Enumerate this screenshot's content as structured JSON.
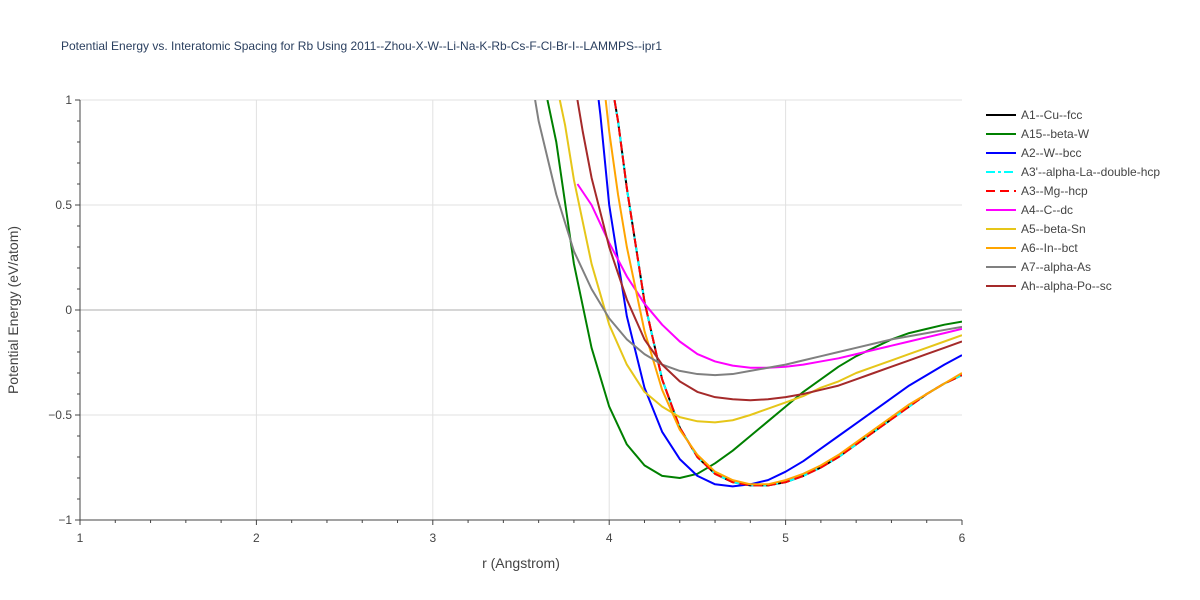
{
  "chart_data": {
    "type": "line",
    "title": "Potential Energy vs. Interatomic Spacing for Rb Using 2011--Zhou-X-W--Li-Na-K-Rb-Cs-F-Cl-Br-I--LAMMPS--ipr1",
    "xlabel": "r (Angstrom)",
    "ylabel": "Potential Energy (eV/atom)",
    "xlim": [
      1,
      6
    ],
    "ylim": [
      -1,
      1
    ],
    "xticks": [
      "1",
      "2",
      "3",
      "4",
      "5",
      "6"
    ],
    "yticks": [
      "−1",
      "−0.5",
      "0",
      "0.5",
      "1"
    ],
    "grid": true,
    "legend_position": "right",
    "series": [
      {
        "name": "A1--Cu--fcc",
        "color": "#000000",
        "dash": "solid",
        "x": [
          4.03,
          4.05,
          4.1,
          4.2,
          4.3,
          4.4,
          4.5,
          4.6,
          4.7,
          4.8,
          4.9,
          5.0,
          5.1,
          5.2,
          5.3,
          5.4,
          5.5,
          5.6,
          5.7,
          5.8,
          5.9,
          6.0
        ],
        "y": [
          1.0,
          0.9,
          0.58,
          0.04,
          -0.33,
          -0.56,
          -0.7,
          -0.78,
          -0.82,
          -0.835,
          -0.835,
          -0.82,
          -0.79,
          -0.75,
          -0.7,
          -0.64,
          -0.58,
          -0.52,
          -0.46,
          -0.4,
          -0.35,
          -0.31
        ]
      },
      {
        "name": "A15--beta-W",
        "color": "#008000",
        "dash": "solid",
        "x": [
          3.65,
          3.7,
          3.8,
          3.9,
          4.0,
          4.1,
          4.2,
          4.3,
          4.4,
          4.5,
          4.6,
          4.7,
          4.8,
          4.9,
          5.0,
          5.1,
          5.2,
          5.3,
          5.4,
          5.5,
          5.6,
          5.7,
          5.8,
          5.9,
          6.0
        ],
        "y": [
          1.0,
          0.8,
          0.22,
          -0.18,
          -0.46,
          -0.64,
          -0.74,
          -0.79,
          -0.8,
          -0.78,
          -0.73,
          -0.67,
          -0.6,
          -0.53,
          -0.46,
          -0.39,
          -0.33,
          -0.27,
          -0.22,
          -0.18,
          -0.14,
          -0.11,
          -0.09,
          -0.07,
          -0.055
        ]
      },
      {
        "name": "A2--W--bcc",
        "color": "#0000ff",
        "dash": "solid",
        "x": [
          3.94,
          3.95,
          4.0,
          4.1,
          4.2,
          4.3,
          4.4,
          4.5,
          4.6,
          4.7,
          4.8,
          4.9,
          5.0,
          5.1,
          5.2,
          5.3,
          5.4,
          5.5,
          5.6,
          5.7,
          5.8,
          5.9,
          6.0
        ],
        "y": [
          1.0,
          0.93,
          0.5,
          -0.03,
          -0.37,
          -0.58,
          -0.71,
          -0.79,
          -0.83,
          -0.84,
          -0.83,
          -0.81,
          -0.77,
          -0.72,
          -0.66,
          -0.6,
          -0.54,
          -0.48,
          -0.42,
          -0.36,
          -0.31,
          -0.26,
          -0.215
        ]
      },
      {
        "name": "A3'--alpha-La--double-hcp",
        "color": "#00ffff",
        "dash": "dashdot",
        "x": [
          4.03,
          4.05,
          4.1,
          4.2,
          4.3,
          4.4,
          4.5,
          4.6,
          4.7,
          4.8,
          4.9,
          5.0,
          5.1,
          5.2,
          5.3,
          5.4,
          5.5,
          5.6,
          5.7,
          5.8,
          5.9,
          6.0
        ],
        "y": [
          1.0,
          0.9,
          0.58,
          0.04,
          -0.33,
          -0.56,
          -0.7,
          -0.78,
          -0.82,
          -0.835,
          -0.835,
          -0.82,
          -0.79,
          -0.75,
          -0.7,
          -0.64,
          -0.58,
          -0.52,
          -0.46,
          -0.4,
          -0.35,
          -0.31
        ]
      },
      {
        "name": "A3--Mg--hcp",
        "color": "#ff0000",
        "dash": "dash",
        "x": [
          4.03,
          4.05,
          4.1,
          4.2,
          4.3,
          4.4,
          4.5,
          4.6,
          4.7,
          4.8,
          4.9,
          5.0,
          5.1,
          5.2,
          5.3,
          5.4,
          5.5,
          5.6,
          5.7,
          5.8,
          5.9,
          6.0
        ],
        "y": [
          1.0,
          0.9,
          0.58,
          0.04,
          -0.33,
          -0.56,
          -0.7,
          -0.78,
          -0.82,
          -0.835,
          -0.835,
          -0.82,
          -0.79,
          -0.75,
          -0.7,
          -0.64,
          -0.58,
          -0.52,
          -0.46,
          -0.4,
          -0.35,
          -0.31
        ]
      },
      {
        "name": "A4--C--dc",
        "color": "#ff00ff",
        "dash": "solid",
        "x": [
          3.82,
          3.9,
          4.0,
          4.1,
          4.2,
          4.3,
          4.4,
          4.5,
          4.6,
          4.7,
          4.8,
          4.9,
          5.0,
          5.1,
          5.2,
          5.3,
          5.4,
          5.5,
          5.6,
          5.7,
          5.8,
          5.9,
          6.0
        ],
        "y": [
          0.6,
          0.5,
          0.32,
          0.16,
          0.03,
          -0.07,
          -0.15,
          -0.21,
          -0.245,
          -0.265,
          -0.275,
          -0.275,
          -0.27,
          -0.26,
          -0.245,
          -0.23,
          -0.21,
          -0.19,
          -0.17,
          -0.15,
          -0.13,
          -0.11,
          -0.09
        ]
      },
      {
        "name": "A5--beta-Sn",
        "color": "#e6c619",
        "dash": "solid",
        "x": [
          3.72,
          3.75,
          3.8,
          3.9,
          4.0,
          4.1,
          4.2,
          4.3,
          4.4,
          4.5,
          4.6,
          4.7,
          4.8,
          4.9,
          5.0,
          5.1,
          5.2,
          5.3,
          5.4,
          5.5,
          5.6,
          5.7,
          5.8,
          5.9,
          6.0
        ],
        "y": [
          1.0,
          0.88,
          0.62,
          0.22,
          -0.07,
          -0.26,
          -0.39,
          -0.46,
          -0.51,
          -0.53,
          -0.535,
          -0.525,
          -0.5,
          -0.47,
          -0.44,
          -0.41,
          -0.37,
          -0.34,
          -0.3,
          -0.27,
          -0.24,
          -0.21,
          -0.18,
          -0.15,
          -0.12
        ]
      },
      {
        "name": "A6--In--bct",
        "color": "#ffa500",
        "dash": "solid",
        "x": [
          3.98,
          4.0,
          4.05,
          4.1,
          4.2,
          4.3,
          4.4,
          4.5,
          4.6,
          4.7,
          4.8,
          4.9,
          5.0,
          5.1,
          5.2,
          5.3,
          5.4,
          5.5,
          5.6,
          5.7,
          5.8,
          5.9,
          6.0
        ],
        "y": [
          1.0,
          0.85,
          0.55,
          0.3,
          -0.1,
          -0.38,
          -0.57,
          -0.69,
          -0.77,
          -0.81,
          -0.83,
          -0.83,
          -0.81,
          -0.78,
          -0.74,
          -0.69,
          -0.63,
          -0.57,
          -0.51,
          -0.45,
          -0.4,
          -0.35,
          -0.3
        ]
      },
      {
        "name": "A7--alpha-As",
        "color": "#808080",
        "dash": "solid",
        "x": [
          3.58,
          3.6,
          3.7,
          3.8,
          3.9,
          4.0,
          4.1,
          4.2,
          4.3,
          4.4,
          4.5,
          4.6,
          4.7,
          4.8,
          4.9,
          5.0,
          5.1,
          5.2,
          5.3,
          5.4,
          5.5,
          5.6,
          5.7,
          5.8,
          5.9,
          6.0
        ],
        "y": [
          1.0,
          0.9,
          0.55,
          0.28,
          0.1,
          -0.04,
          -0.14,
          -0.21,
          -0.26,
          -0.29,
          -0.305,
          -0.31,
          -0.305,
          -0.29,
          -0.275,
          -0.26,
          -0.24,
          -0.22,
          -0.2,
          -0.18,
          -0.16,
          -0.14,
          -0.125,
          -0.11,
          -0.095,
          -0.08
        ]
      },
      {
        "name": "Ah--alpha-Po--sc",
        "color": "#a52a2a",
        "dash": "solid",
        "x": [
          3.82,
          3.85,
          3.9,
          4.0,
          4.1,
          4.2,
          4.3,
          4.4,
          4.5,
          4.6,
          4.7,
          4.8,
          4.9,
          5.0,
          5.1,
          5.2,
          5.3,
          5.4,
          5.5,
          5.6,
          5.7,
          5.8,
          5.9,
          6.0
        ],
        "y": [
          1.0,
          0.85,
          0.63,
          0.3,
          0.05,
          -0.14,
          -0.26,
          -0.34,
          -0.39,
          -0.415,
          -0.425,
          -0.43,
          -0.425,
          -0.415,
          -0.4,
          -0.38,
          -0.36,
          -0.33,
          -0.3,
          -0.27,
          -0.24,
          -0.21,
          -0.18,
          -0.15
        ]
      }
    ]
  }
}
